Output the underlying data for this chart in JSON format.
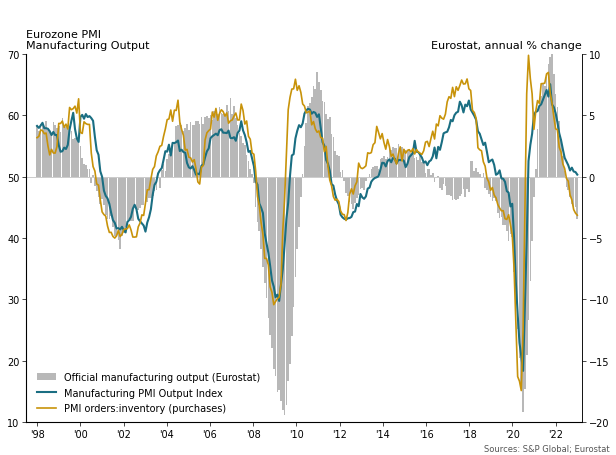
{
  "title_left": "Eurozone PMI\nManufacturing Output",
  "title_right": "Eurostat, annual % change",
  "source": "Sources: S&P Global; Eurostat",
  "left_ylim": [
    10,
    70
  ],
  "right_ylim": [
    -20,
    10
  ],
  "left_yticks": [
    10,
    20,
    30,
    40,
    50,
    60,
    70
  ],
  "right_yticks": [
    -20,
    -15,
    -10,
    -5,
    0,
    5,
    10
  ],
  "xtick_years": [
    1998,
    2000,
    2002,
    2004,
    2006,
    2008,
    2010,
    2012,
    2014,
    2016,
    2018,
    2020,
    2022
  ],
  "xtick_labels": [
    "'98",
    "'00",
    "'02",
    "'04",
    "'06",
    "'08",
    "'10",
    "'12",
    "'14",
    "'16",
    "'18",
    "'20",
    "'22"
  ],
  "color_bar": "#b8b8b8",
  "color_pmi": "#1a6e82",
  "color_orders": "#c8930a",
  "hline_color": "#cccccc",
  "background_color": "#ffffff",
  "font_size_title": 8,
  "font_size_tick": 7,
  "font_size_legend": 7,
  "font_size_source": 6,
  "legend_labels": [
    "Official manufacturing output (Eurostat)",
    "Manufacturing PMI Output Index",
    "PMI orders:inventory (purchases)"
  ]
}
